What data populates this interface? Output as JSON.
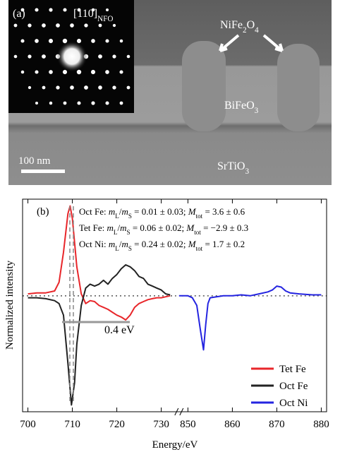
{
  "panel_a": {
    "label": "(a)",
    "zone_axis": [
      {
        "text": "[110]"
      },
      {
        "sub": "NFO"
      }
    ],
    "pillar_label": [
      {
        "text": "NiFe"
      },
      {
        "sub": "2"
      },
      {
        "text": "O"
      },
      {
        "sub": "4"
      }
    ],
    "film_label": [
      {
        "text": "BiFeO"
      },
      {
        "sub": "3"
      }
    ],
    "substrate_label": [
      {
        "text": "SrTiO"
      },
      {
        "sub": "3"
      }
    ],
    "scale_bar": "100 nm"
  },
  "chart_data": {
    "type": "line",
    "panel_label": "(b)",
    "xlabel": "Energy/eV",
    "ylabel": "Normalized intensity",
    "ylim": [
      -1.2,
      1.0
    ],
    "x_segments": [
      {
        "xlim": [
          698.8,
          734
        ],
        "xticks": [
          700,
          710,
          720,
          730
        ]
      },
      {
        "xlim": [
          848,
          881.2
        ],
        "xticks": [
          850,
          860,
          870,
          880
        ]
      }
    ],
    "annotations": [
      [
        {
          "text": "Oct Fe: "
        },
        {
          "italic": "m"
        },
        {
          "sub": "L"
        },
        {
          "text": "/"
        },
        {
          "italic": "m"
        },
        {
          "sub": "S"
        },
        {
          "text": " = 0.01 ± 0.03; "
        },
        {
          "italic": "M"
        },
        {
          "sub": "tot"
        },
        {
          "text": " = 3.6 ± 0.6"
        }
      ],
      [
        {
          "text": "Tet Fe: "
        },
        {
          "italic": "m"
        },
        {
          "sub": "L"
        },
        {
          "text": "/"
        },
        {
          "italic": "m"
        },
        {
          "sub": "S"
        },
        {
          "text": " = 0.06 ± 0.02; "
        },
        {
          "italic": "M"
        },
        {
          "sub": "tot"
        },
        {
          "text": " = −2.9 ± 0.3"
        }
      ],
      [
        {
          "text": "Oct Ni: "
        },
        {
          "italic": "m"
        },
        {
          "sub": "L"
        },
        {
          "text": "/"
        },
        {
          "italic": "m"
        },
        {
          "sub": "S"
        },
        {
          "text": " = 0.24 ± 0.02; "
        },
        {
          "italic": "M"
        },
        {
          "sub": "tot"
        },
        {
          "text": " = 1.7 ± 0.2"
        }
      ]
    ],
    "splitting_label": "0.4 eV",
    "legend": "lower right",
    "series": [
      {
        "name": "Tet Fe",
        "color": "#e8262a",
        "x": [
          700,
          702,
          704,
          706,
          707,
          708,
          709,
          709.5,
          710,
          711,
          712,
          713,
          714,
          715,
          716,
          717,
          718,
          719,
          720,
          721,
          722,
          723,
          724,
          725,
          726,
          727,
          728,
          729,
          730,
          731,
          732
        ],
        "values": [
          0.02,
          0.03,
          0.03,
          0.05,
          0.14,
          0.45,
          0.85,
          0.93,
          0.8,
          0.3,
          0.02,
          -0.08,
          -0.05,
          -0.06,
          -0.1,
          -0.12,
          -0.14,
          -0.17,
          -0.2,
          -0.22,
          -0.25,
          -0.2,
          -0.12,
          -0.08,
          -0.06,
          -0.04,
          -0.03,
          -0.02,
          -0.02,
          -0.01,
          0
        ]
      },
      {
        "name": "Oct Fe",
        "color": "#222222",
        "x": [
          700,
          702,
          704,
          706,
          707,
          708,
          709,
          709.8,
          710.5,
          711,
          712,
          713,
          714,
          715,
          716,
          717,
          718,
          719,
          720,
          721,
          722,
          723,
          724,
          725,
          726,
          727,
          728,
          729,
          730,
          731,
          732
        ],
        "values": [
          -0.02,
          -0.02,
          -0.03,
          -0.05,
          -0.08,
          -0.2,
          -0.7,
          -1.13,
          -0.9,
          -0.5,
          -0.1,
          0.08,
          0.12,
          0.1,
          0.12,
          0.16,
          0.12,
          0.18,
          0.22,
          0.28,
          0.32,
          0.3,
          0.26,
          0.2,
          0.18,
          0.12,
          0.1,
          0.08,
          0.06,
          0.02,
          0.01
        ]
      },
      {
        "name": "Oct Ni",
        "color": "#2424e0",
        "x": [
          848,
          850,
          851,
          852,
          852.8,
          853.5,
          854,
          854.5,
          855,
          858,
          860,
          862,
          864,
          866,
          868,
          869,
          870,
          871,
          872,
          873,
          875,
          878,
          880
        ],
        "values": [
          0,
          0,
          -0.02,
          -0.1,
          -0.35,
          -0.56,
          -0.3,
          -0.08,
          -0.02,
          0,
          0,
          0.01,
          0,
          0.02,
          0.04,
          0.06,
          0.1,
          0.09,
          0.05,
          0.03,
          0.02,
          0.01,
          0.01
        ]
      }
    ]
  }
}
